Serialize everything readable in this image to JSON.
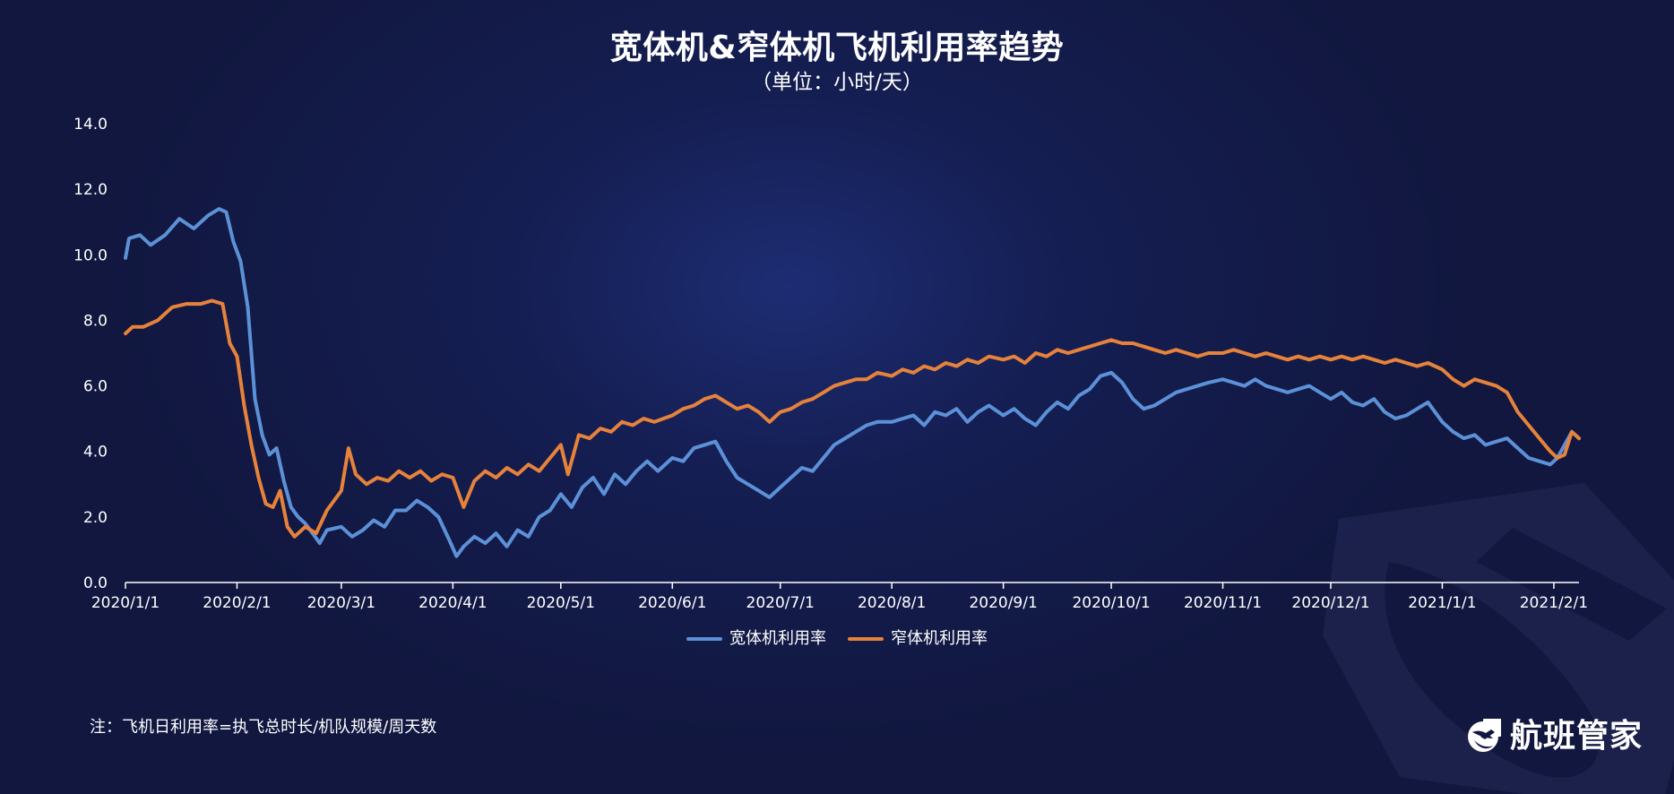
{
  "header": {
    "title": "宽体机&窄体机飞机利用率趋势",
    "subtitle": "（单位：小时/天）"
  },
  "chart_data": {
    "type": "line",
    "title": "宽体机&窄体机飞机利用率趋势",
    "subtitle": "（单位：小时/天）",
    "xlabel": "",
    "ylabel": "",
    "ylim": [
      0,
      14
    ],
    "yticks": [
      "0.0",
      "2.0",
      "4.0",
      "6.0",
      "8.0",
      "10.0",
      "12.0",
      "14.0"
    ],
    "xticks": [
      "2020/1/1",
      "2020/2/1",
      "2020/3/1",
      "2020/4/1",
      "2020/5/1",
      "2020/6/1",
      "2020/7/1",
      "2020/8/1",
      "2020/9/1",
      "2020/10/1",
      "2020/11/1",
      "2020/12/1",
      "2021/1/1",
      "2021/2/1"
    ],
    "xlim": [
      "2020-01-01",
      "2021-02-08"
    ],
    "grid": false,
    "legend_position": "bottom",
    "series": [
      {
        "name": "宽体机利用率",
        "color": "#5c91d8",
        "points": [
          [
            "2020-01-01",
            9.9
          ],
          [
            "2020-01-02",
            10.5
          ],
          [
            "2020-01-05",
            10.6
          ],
          [
            "2020-01-08",
            10.3
          ],
          [
            "2020-01-12",
            10.6
          ],
          [
            "2020-01-16",
            11.1
          ],
          [
            "2020-01-20",
            10.8
          ],
          [
            "2020-01-24",
            11.2
          ],
          [
            "2020-01-27",
            11.4
          ],
          [
            "2020-01-29",
            11.3
          ],
          [
            "2020-01-31",
            10.4
          ],
          [
            "2020-02-02",
            9.8
          ],
          [
            "2020-02-04",
            8.4
          ],
          [
            "2020-02-06",
            5.6
          ],
          [
            "2020-02-08",
            4.5
          ],
          [
            "2020-02-10",
            3.9
          ],
          [
            "2020-02-12",
            4.1
          ],
          [
            "2020-02-14",
            3.1
          ],
          [
            "2020-02-16",
            2.3
          ],
          [
            "2020-02-18",
            2.0
          ],
          [
            "2020-02-20",
            1.8
          ],
          [
            "2020-02-22",
            1.5
          ],
          [
            "2020-02-24",
            1.2
          ],
          [
            "2020-02-26",
            1.6
          ],
          [
            "2020-03-01",
            1.7
          ],
          [
            "2020-03-04",
            1.4
          ],
          [
            "2020-03-07",
            1.6
          ],
          [
            "2020-03-10",
            1.9
          ],
          [
            "2020-03-13",
            1.7
          ],
          [
            "2020-03-16",
            2.2
          ],
          [
            "2020-03-19",
            2.2
          ],
          [
            "2020-03-22",
            2.5
          ],
          [
            "2020-03-25",
            2.3
          ],
          [
            "2020-03-28",
            2.0
          ],
          [
            "2020-03-31",
            1.3
          ],
          [
            "2020-04-02",
            0.8
          ],
          [
            "2020-04-04",
            1.1
          ],
          [
            "2020-04-07",
            1.4
          ],
          [
            "2020-04-10",
            1.2
          ],
          [
            "2020-04-13",
            1.5
          ],
          [
            "2020-04-16",
            1.1
          ],
          [
            "2020-04-19",
            1.6
          ],
          [
            "2020-04-22",
            1.4
          ],
          [
            "2020-04-25",
            2.0
          ],
          [
            "2020-04-28",
            2.2
          ],
          [
            "2020-05-01",
            2.7
          ],
          [
            "2020-05-04",
            2.3
          ],
          [
            "2020-05-07",
            2.9
          ],
          [
            "2020-05-10",
            3.2
          ],
          [
            "2020-05-13",
            2.7
          ],
          [
            "2020-05-16",
            3.3
          ],
          [
            "2020-05-19",
            3.0
          ],
          [
            "2020-05-22",
            3.4
          ],
          [
            "2020-05-25",
            3.7
          ],
          [
            "2020-05-28",
            3.4
          ],
          [
            "2020-06-01",
            3.8
          ],
          [
            "2020-06-04",
            3.7
          ],
          [
            "2020-06-07",
            4.1
          ],
          [
            "2020-06-10",
            4.2
          ],
          [
            "2020-06-13",
            4.3
          ],
          [
            "2020-06-16",
            3.7
          ],
          [
            "2020-06-19",
            3.2
          ],
          [
            "2020-06-22",
            3.0
          ],
          [
            "2020-06-25",
            2.8
          ],
          [
            "2020-06-28",
            2.6
          ],
          [
            "2020-07-01",
            2.9
          ],
          [
            "2020-07-04",
            3.2
          ],
          [
            "2020-07-07",
            3.5
          ],
          [
            "2020-07-10",
            3.4
          ],
          [
            "2020-07-13",
            3.8
          ],
          [
            "2020-07-16",
            4.2
          ],
          [
            "2020-07-19",
            4.4
          ],
          [
            "2020-07-22",
            4.6
          ],
          [
            "2020-07-25",
            4.8
          ],
          [
            "2020-07-28",
            4.9
          ],
          [
            "2020-08-01",
            4.9
          ],
          [
            "2020-08-04",
            5.0
          ],
          [
            "2020-08-07",
            5.1
          ],
          [
            "2020-08-10",
            4.8
          ],
          [
            "2020-08-13",
            5.2
          ],
          [
            "2020-08-16",
            5.1
          ],
          [
            "2020-08-19",
            5.3
          ],
          [
            "2020-08-22",
            4.9
          ],
          [
            "2020-08-25",
            5.2
          ],
          [
            "2020-08-28",
            5.4
          ],
          [
            "2020-09-01",
            5.1
          ],
          [
            "2020-09-04",
            5.3
          ],
          [
            "2020-09-07",
            5.0
          ],
          [
            "2020-09-10",
            4.8
          ],
          [
            "2020-09-13",
            5.2
          ],
          [
            "2020-09-16",
            5.5
          ],
          [
            "2020-09-19",
            5.3
          ],
          [
            "2020-09-22",
            5.7
          ],
          [
            "2020-09-25",
            5.9
          ],
          [
            "2020-09-28",
            6.3
          ],
          [
            "2020-10-01",
            6.4
          ],
          [
            "2020-10-04",
            6.1
          ],
          [
            "2020-10-07",
            5.6
          ],
          [
            "2020-10-10",
            5.3
          ],
          [
            "2020-10-13",
            5.4
          ],
          [
            "2020-10-16",
            5.6
          ],
          [
            "2020-10-19",
            5.8
          ],
          [
            "2020-10-22",
            5.9
          ],
          [
            "2020-10-25",
            6.0
          ],
          [
            "2020-10-28",
            6.1
          ],
          [
            "2020-11-01",
            6.2
          ],
          [
            "2020-11-04",
            6.1
          ],
          [
            "2020-11-07",
            6.0
          ],
          [
            "2020-11-10",
            6.2
          ],
          [
            "2020-11-13",
            6.0
          ],
          [
            "2020-11-16",
            5.9
          ],
          [
            "2020-11-19",
            5.8
          ],
          [
            "2020-11-22",
            5.9
          ],
          [
            "2020-11-25",
            6.0
          ],
          [
            "2020-11-28",
            5.8
          ],
          [
            "2020-12-01",
            5.6
          ],
          [
            "2020-12-04",
            5.8
          ],
          [
            "2020-12-07",
            5.5
          ],
          [
            "2020-12-10",
            5.4
          ],
          [
            "2020-12-13",
            5.6
          ],
          [
            "2020-12-16",
            5.2
          ],
          [
            "2020-12-19",
            5.0
          ],
          [
            "2020-12-22",
            5.1
          ],
          [
            "2020-12-25",
            5.3
          ],
          [
            "2020-12-28",
            5.5
          ],
          [
            "2021-01-01",
            4.9
          ],
          [
            "2021-01-04",
            4.6
          ],
          [
            "2021-01-07",
            4.4
          ],
          [
            "2021-01-10",
            4.5
          ],
          [
            "2021-01-13",
            4.2
          ],
          [
            "2021-01-16",
            4.3
          ],
          [
            "2021-01-19",
            4.4
          ],
          [
            "2021-01-22",
            4.1
          ],
          [
            "2021-01-25",
            3.8
          ],
          [
            "2021-01-28",
            3.7
          ],
          [
            "2021-01-31",
            3.6
          ],
          [
            "2021-02-02",
            3.8
          ],
          [
            "2021-02-04",
            4.2
          ],
          [
            "2021-02-06",
            4.6
          ],
          [
            "2021-02-08",
            4.4
          ]
        ]
      },
      {
        "name": "窄体机利用率",
        "color": "#e6823b",
        "points": [
          [
            "2020-01-01",
            7.6
          ],
          [
            "2020-01-03",
            7.8
          ],
          [
            "2020-01-06",
            7.8
          ],
          [
            "2020-01-10",
            8.0
          ],
          [
            "2020-01-14",
            8.4
          ],
          [
            "2020-01-18",
            8.5
          ],
          [
            "2020-01-22",
            8.5
          ],
          [
            "2020-01-25",
            8.6
          ],
          [
            "2020-01-28",
            8.5
          ],
          [
            "2020-01-30",
            7.3
          ],
          [
            "2020-02-01",
            6.9
          ],
          [
            "2020-02-03",
            5.4
          ],
          [
            "2020-02-05",
            4.2
          ],
          [
            "2020-02-07",
            3.2
          ],
          [
            "2020-02-09",
            2.4
          ],
          [
            "2020-02-11",
            2.3
          ],
          [
            "2020-02-13",
            2.8
          ],
          [
            "2020-02-15",
            1.7
          ],
          [
            "2020-02-17",
            1.4
          ],
          [
            "2020-02-20",
            1.7
          ],
          [
            "2020-02-23",
            1.5
          ],
          [
            "2020-02-26",
            2.2
          ],
          [
            "2020-03-01",
            2.8
          ],
          [
            "2020-03-03",
            4.1
          ],
          [
            "2020-03-05",
            3.3
          ],
          [
            "2020-03-08",
            3.0
          ],
          [
            "2020-03-11",
            3.2
          ],
          [
            "2020-03-14",
            3.1
          ],
          [
            "2020-03-17",
            3.4
          ],
          [
            "2020-03-20",
            3.2
          ],
          [
            "2020-03-23",
            3.4
          ],
          [
            "2020-03-26",
            3.1
          ],
          [
            "2020-03-29",
            3.3
          ],
          [
            "2020-04-01",
            3.2
          ],
          [
            "2020-04-04",
            2.3
          ],
          [
            "2020-04-07",
            3.1
          ],
          [
            "2020-04-10",
            3.4
          ],
          [
            "2020-04-13",
            3.2
          ],
          [
            "2020-04-16",
            3.5
          ],
          [
            "2020-04-19",
            3.3
          ],
          [
            "2020-04-22",
            3.6
          ],
          [
            "2020-04-25",
            3.4
          ],
          [
            "2020-04-28",
            3.8
          ],
          [
            "2020-05-01",
            4.2
          ],
          [
            "2020-05-03",
            3.3
          ],
          [
            "2020-05-06",
            4.5
          ],
          [
            "2020-05-09",
            4.4
          ],
          [
            "2020-05-12",
            4.7
          ],
          [
            "2020-05-15",
            4.6
          ],
          [
            "2020-05-18",
            4.9
          ],
          [
            "2020-05-21",
            4.8
          ],
          [
            "2020-05-24",
            5.0
          ],
          [
            "2020-05-27",
            4.9
          ],
          [
            "2020-06-01",
            5.1
          ],
          [
            "2020-06-04",
            5.3
          ],
          [
            "2020-06-07",
            5.4
          ],
          [
            "2020-06-10",
            5.6
          ],
          [
            "2020-06-13",
            5.7
          ],
          [
            "2020-06-16",
            5.5
          ],
          [
            "2020-06-19",
            5.3
          ],
          [
            "2020-06-22",
            5.4
          ],
          [
            "2020-06-25",
            5.2
          ],
          [
            "2020-06-28",
            4.9
          ],
          [
            "2020-07-01",
            5.2
          ],
          [
            "2020-07-04",
            5.3
          ],
          [
            "2020-07-07",
            5.5
          ],
          [
            "2020-07-10",
            5.6
          ],
          [
            "2020-07-13",
            5.8
          ],
          [
            "2020-07-16",
            6.0
          ],
          [
            "2020-07-19",
            6.1
          ],
          [
            "2020-07-22",
            6.2
          ],
          [
            "2020-07-25",
            6.2
          ],
          [
            "2020-07-28",
            6.4
          ],
          [
            "2020-08-01",
            6.3
          ],
          [
            "2020-08-04",
            6.5
          ],
          [
            "2020-08-07",
            6.4
          ],
          [
            "2020-08-10",
            6.6
          ],
          [
            "2020-08-13",
            6.5
          ],
          [
            "2020-08-16",
            6.7
          ],
          [
            "2020-08-19",
            6.6
          ],
          [
            "2020-08-22",
            6.8
          ],
          [
            "2020-08-25",
            6.7
          ],
          [
            "2020-08-28",
            6.9
          ],
          [
            "2020-09-01",
            6.8
          ],
          [
            "2020-09-04",
            6.9
          ],
          [
            "2020-09-07",
            6.7
          ],
          [
            "2020-09-10",
            7.0
          ],
          [
            "2020-09-13",
            6.9
          ],
          [
            "2020-09-16",
            7.1
          ],
          [
            "2020-09-19",
            7.0
          ],
          [
            "2020-09-22",
            7.1
          ],
          [
            "2020-09-25",
            7.2
          ],
          [
            "2020-09-28",
            7.3
          ],
          [
            "2020-10-01",
            7.4
          ],
          [
            "2020-10-04",
            7.3
          ],
          [
            "2020-10-07",
            7.3
          ],
          [
            "2020-10-10",
            7.2
          ],
          [
            "2020-10-13",
            7.1
          ],
          [
            "2020-10-16",
            7.0
          ],
          [
            "2020-10-19",
            7.1
          ],
          [
            "2020-10-22",
            7.0
          ],
          [
            "2020-10-25",
            6.9
          ],
          [
            "2020-10-28",
            7.0
          ],
          [
            "2020-11-01",
            7.0
          ],
          [
            "2020-11-04",
            7.1
          ],
          [
            "2020-11-07",
            7.0
          ],
          [
            "2020-11-10",
            6.9
          ],
          [
            "2020-11-13",
            7.0
          ],
          [
            "2020-11-16",
            6.9
          ],
          [
            "2020-11-19",
            6.8
          ],
          [
            "2020-11-22",
            6.9
          ],
          [
            "2020-11-25",
            6.8
          ],
          [
            "2020-11-28",
            6.9
          ],
          [
            "2020-12-01",
            6.8
          ],
          [
            "2020-12-04",
            6.9
          ],
          [
            "2020-12-07",
            6.8
          ],
          [
            "2020-12-10",
            6.9
          ],
          [
            "2020-12-13",
            6.8
          ],
          [
            "2020-12-16",
            6.7
          ],
          [
            "2020-12-19",
            6.8
          ],
          [
            "2020-12-22",
            6.7
          ],
          [
            "2020-12-25",
            6.6
          ],
          [
            "2020-12-28",
            6.7
          ],
          [
            "2021-01-01",
            6.5
          ],
          [
            "2021-01-04",
            6.2
          ],
          [
            "2021-01-07",
            6.0
          ],
          [
            "2021-01-10",
            6.2
          ],
          [
            "2021-01-13",
            6.1
          ],
          [
            "2021-01-16",
            6.0
          ],
          [
            "2021-01-19",
            5.8
          ],
          [
            "2021-01-22",
            5.2
          ],
          [
            "2021-01-25",
            4.8
          ],
          [
            "2021-01-28",
            4.4
          ],
          [
            "2021-01-31",
            4.0
          ],
          [
            "2021-02-02",
            3.8
          ],
          [
            "2021-02-04",
            3.9
          ],
          [
            "2021-02-06",
            4.6
          ],
          [
            "2021-02-08",
            4.4
          ]
        ]
      }
    ]
  },
  "legend": {
    "items": [
      {
        "label": "宽体机利用率",
        "color": "#5c91d8"
      },
      {
        "label": "窄体机利用率",
        "color": "#e6823b"
      }
    ]
  },
  "footer": {
    "note": "注：飞机日利用率=执飞总时长/机队规模/周天数",
    "brand": "航班管家"
  },
  "theme": {
    "background": "#11173f",
    "text": "#ffffff",
    "axis": "#ffffff"
  }
}
